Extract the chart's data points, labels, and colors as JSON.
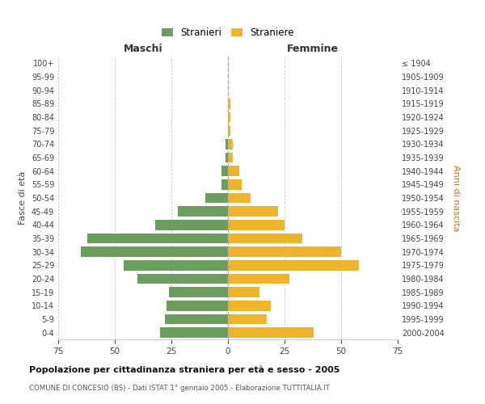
{
  "age_groups": [
    "100+",
    "95-99",
    "90-94",
    "85-89",
    "80-84",
    "75-79",
    "70-74",
    "65-69",
    "60-64",
    "55-59",
    "50-54",
    "45-49",
    "40-44",
    "35-39",
    "30-34",
    "25-29",
    "20-24",
    "15-19",
    "10-14",
    "5-9",
    "0-4"
  ],
  "birth_years": [
    "≤ 1904",
    "1905-1909",
    "1910-1914",
    "1915-1919",
    "1920-1924",
    "1925-1929",
    "1930-1934",
    "1935-1939",
    "1940-1944",
    "1945-1949",
    "1950-1954",
    "1955-1959",
    "1960-1964",
    "1965-1969",
    "1970-1974",
    "1975-1979",
    "1980-1984",
    "1985-1989",
    "1990-1994",
    "1995-1999",
    "2000-2004"
  ],
  "maschi": [
    0,
    0,
    0,
    0,
    0,
    0,
    1,
    1,
    3,
    3,
    10,
    22,
    32,
    62,
    65,
    46,
    40,
    26,
    27,
    28,
    30
  ],
  "femmine": [
    0,
    0,
    0,
    1,
    1,
    1,
    2,
    2,
    5,
    6,
    10,
    22,
    25,
    33,
    50,
    58,
    27,
    14,
    19,
    17,
    38
  ],
  "color_maschi": "#6b9e5e",
  "color_femmine": "#f0b429",
  "xlim": 75,
  "xlabel_left": "Maschi",
  "xlabel_right": "Femmine",
  "ylabel_left": "Fasce di età",
  "ylabel_right": "Anni di nascita",
  "title": "Popolazione per cittadinanza straniera per età e sesso - 2005",
  "subtitle": "COMUNE DI CONCESIO (BS) - Dati ISTAT 1° gennaio 2005 - Elaborazione TUTTITALIA.IT",
  "legend_maschi": "Stranieri",
  "legend_femmine": "Straniere",
  "background_color": "#ffffff",
  "grid_color": "#cccccc",
  "dashed_line_color": "#aaaaaa"
}
